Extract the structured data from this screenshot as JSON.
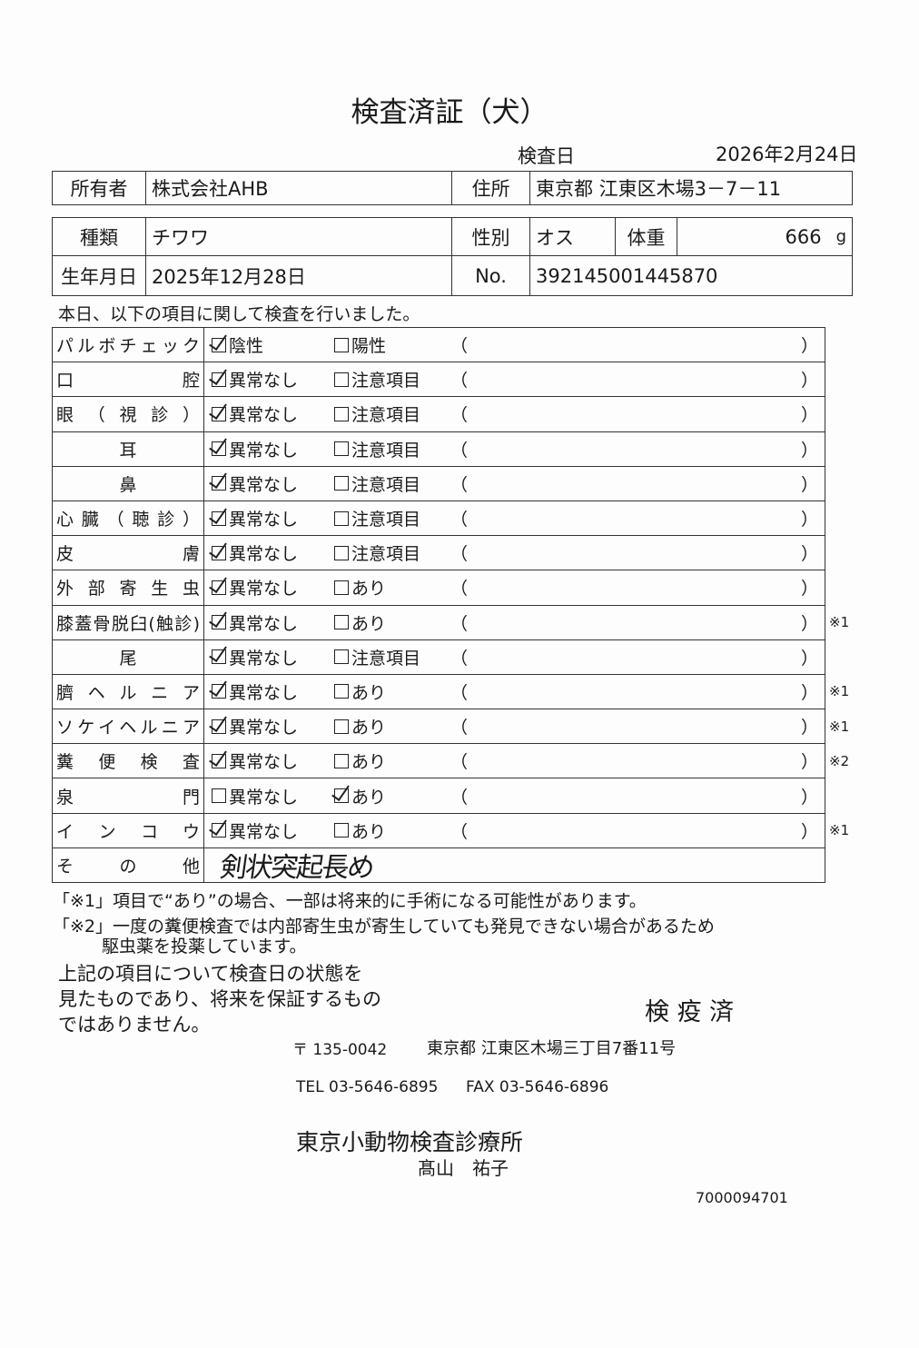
{
  "title": "検査済証（犬）",
  "exam_date_label": "検査日",
  "exam_date": "2026年2月24日",
  "owner": {
    "label": "所有者",
    "value": "株式会社AHB",
    "address_label": "住所",
    "address": "東京都 江東区木場3－7－11"
  },
  "animal": {
    "breed_label": "種類",
    "breed": "チワワ",
    "sex_label": "性別",
    "sex": "オス",
    "weight_label": "体重",
    "weight": "666",
    "weight_unit": "g",
    "dob_label": "生年月日",
    "dob": "2025年12月28日",
    "no_label": "No.",
    "no": "392145001445870"
  },
  "intro": "本日、以下の項目に関して検査を行いました。",
  "paren_open": "（",
  "paren_close": "）",
  "items": [
    {
      "label": "パルボチェック",
      "opt1": "陰性",
      "opt2": "陽性",
      "checked": 1,
      "note": ""
    },
    {
      "label": "口腔",
      "opt1": "異常なし",
      "opt2": "注意項目",
      "checked": 1,
      "note": ""
    },
    {
      "label": "眼（視診）",
      "opt1": "異常なし",
      "opt2": "注意項目",
      "checked": 1,
      "note": ""
    },
    {
      "label": "耳",
      "opt1": "異常なし",
      "opt2": "注意項目",
      "checked": 1,
      "note": ""
    },
    {
      "label": "鼻",
      "opt1": "異常なし",
      "opt2": "注意項目",
      "checked": 1,
      "note": ""
    },
    {
      "label": "心臓（聴診）",
      "opt1": "異常なし",
      "opt2": "注意項目",
      "checked": 1,
      "note": ""
    },
    {
      "label": "皮膚",
      "opt1": "異常なし",
      "opt2": "注意項目",
      "checked": 1,
      "note": ""
    },
    {
      "label": "外部寄生虫",
      "opt1": "異常なし",
      "opt2": "あり",
      "checked": 1,
      "note": ""
    },
    {
      "label": "膝蓋骨脱臼(触診)",
      "opt1": "異常なし",
      "opt2": "あり",
      "checked": 1,
      "note": "※1"
    },
    {
      "label": "尾",
      "opt1": "異常なし",
      "opt2": "注意項目",
      "checked": 1,
      "note": ""
    },
    {
      "label": "臍ヘルニア",
      "opt1": "異常なし",
      "opt2": "あり",
      "checked": 1,
      "note": "※1"
    },
    {
      "label": "ソケイヘルニア",
      "opt1": "異常なし",
      "opt2": "あり",
      "checked": 1,
      "note": "※1"
    },
    {
      "label": "糞便検査",
      "opt1": "異常なし",
      "opt2": "あり",
      "checked": 1,
      "note": "※2"
    },
    {
      "label": "泉門",
      "opt1": "異常なし",
      "opt2": "あり",
      "checked": 2,
      "note": ""
    },
    {
      "label": "インコウ",
      "opt1": "異常なし",
      "opt2": "あり",
      "checked": 1,
      "note": "※1"
    }
  ],
  "other": {
    "label": "その他",
    "handwritten": "剣状突起長め"
  },
  "footnote1": "「※1」項目で“あり”の場合、一部は将来的に手術になる可能性があります。",
  "footnote2": "「※2」一度の糞便検査では内部寄生虫が寄生していても発見できない場合があるため",
  "footnote2b": "駆虫薬を投薬しています。",
  "disclaimer": [
    "上記の項目について検査日の状態を",
    "見たものであり、将来を保証するもの",
    "ではありません。"
  ],
  "stamp": "検 疫 済",
  "postal": "〒 135-0042",
  "clinic_address": "東京都 江東区木場三丁目7番11号",
  "tel": "TEL 03-5646-6895",
  "fax": "FAX 03-5646-6896",
  "clinic_name": "東京小動物検査診療所",
  "doctor": "髙山　祐子",
  "serial": "7000094701"
}
